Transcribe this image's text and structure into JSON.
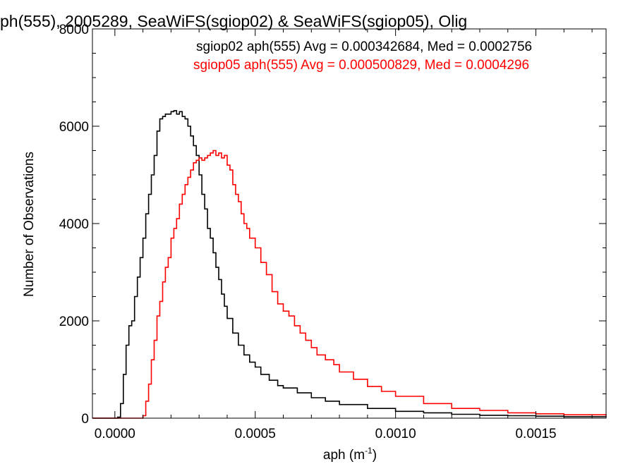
{
  "chart_data": {
    "type": "line",
    "title": "ph(555), 2005289, SeaWiFS(sgiop02) & SeaWiFS(sgiop05), Olig",
    "xlabel": "aph (m",
    "xlabel_exp": "-1",
    "xlabel_close": ")",
    "ylabel": "Number of Observations",
    "xlim": [
      -8e-05,
      0.00175
    ],
    "ylim": [
      0,
      8000
    ],
    "x_ticks": [
      0.0,
      0.0005,
      0.001,
      0.0015
    ],
    "x_tick_labels": [
      "0.0000",
      "0.0005",
      "0.0010",
      "0.0015"
    ],
    "y_ticks": [
      0,
      2000,
      4000,
      6000,
      8000
    ],
    "y_tick_labels": [
      "0",
      "2000",
      "4000",
      "6000",
      "8000"
    ],
    "grid": false,
    "annotations": [
      {
        "text": "sgiop02 aph(555) Avg = 0.000342684, Med = 0.0002756",
        "color": "#000000"
      },
      {
        "text": "sgiop05 aph(555) Avg = 0.000500829, Med = 0.0004296",
        "color": "#ff0000"
      }
    ],
    "series": [
      {
        "color": "#000000",
        "x": [
          -8e-05,
          -2e-05,
          1e-05,
          2e-05,
          3e-05,
          4e-05,
          5e-05,
          6e-05,
          7e-05,
          8e-05,
          9e-05,
          0.0001,
          0.00011,
          0.00012,
          0.00013,
          0.00014,
          0.00015,
          0.00016,
          0.00017,
          0.00018,
          0.00019,
          0.0002,
          0.00021,
          0.00022,
          0.00023,
          0.00024,
          0.00025,
          0.00026,
          0.00027,
          0.00028,
          0.00029,
          0.0003,
          0.00031,
          0.00032,
          0.00033,
          0.00034,
          0.00035,
          0.00036,
          0.00037,
          0.00038,
          0.00039,
          0.0004,
          0.00042,
          0.00044,
          0.00046,
          0.00048,
          0.0005,
          0.00052,
          0.00055,
          0.00058,
          0.0006,
          0.00065,
          0.0007,
          0.00075,
          0.0008,
          0.0009,
          0.001,
          0.0011,
          0.0012,
          0.0013,
          0.0014,
          0.0015,
          0.0016,
          0.00175
        ],
        "values": [
          0,
          0,
          20,
          300,
          900,
          1500,
          1900,
          2000,
          2500,
          2900,
          3300,
          3700,
          4200,
          4600,
          5000,
          5400,
          5900,
          6150,
          6200,
          6250,
          6250,
          6300,
          6320,
          6250,
          6300,
          6200,
          6150,
          6000,
          5800,
          5600,
          5400,
          5000,
          4600,
          4300,
          3900,
          3700,
          3400,
          3100,
          2850,
          2550,
          2300,
          2050,
          1750,
          1500,
          1300,
          1150,
          1050,
          900,
          780,
          670,
          620,
          520,
          420,
          350,
          280,
          200,
          140,
          110,
          80,
          60,
          50,
          40,
          30,
          20
        ]
      },
      {
        "color": "#ff0000",
        "x": [
          -8e-05,
          8e-05,
          0.0001,
          0.00011,
          0.00012,
          0.00013,
          0.00014,
          0.00015,
          0.00016,
          0.00017,
          0.00018,
          0.00019,
          0.0002,
          0.00021,
          0.00022,
          0.00023,
          0.00024,
          0.00025,
          0.00026,
          0.00027,
          0.00028,
          0.00029,
          0.0003,
          0.00031,
          0.00032,
          0.00033,
          0.00034,
          0.00035,
          0.00036,
          0.00037,
          0.00038,
          0.00039,
          0.0004,
          0.00041,
          0.00042,
          0.00043,
          0.00044,
          0.00045,
          0.00046,
          0.00047,
          0.00048,
          0.0005,
          0.00052,
          0.00054,
          0.00056,
          0.00058,
          0.0006,
          0.00062,
          0.00064,
          0.00066,
          0.00068,
          0.0007,
          0.00072,
          0.00075,
          0.00078,
          0.0008,
          0.00085,
          0.0009,
          0.00095,
          0.001,
          0.0011,
          0.0012,
          0.0013,
          0.0014,
          0.0015,
          0.0016,
          0.00175
        ],
        "values": [
          0,
          0,
          50,
          350,
          700,
          1200,
          1600,
          2100,
          2400,
          2800,
          3100,
          3300,
          3700,
          3900,
          4100,
          4400,
          4600,
          4800,
          4950,
          5100,
          5250,
          5300,
          5350,
          5300,
          5350,
          5400,
          5450,
          5500,
          5400,
          5450,
          5350,
          5400,
          5200,
          5100,
          4800,
          4600,
          4450,
          4200,
          4000,
          3900,
          3700,
          3500,
          3200,
          2950,
          2600,
          2350,
          2200,
          2100,
          1900,
          1750,
          1600,
          1450,
          1300,
          1200,
          1100,
          950,
          800,
          650,
          550,
          450,
          300,
          200,
          160,
          110,
          90,
          70,
          50
        ]
      }
    ]
  }
}
